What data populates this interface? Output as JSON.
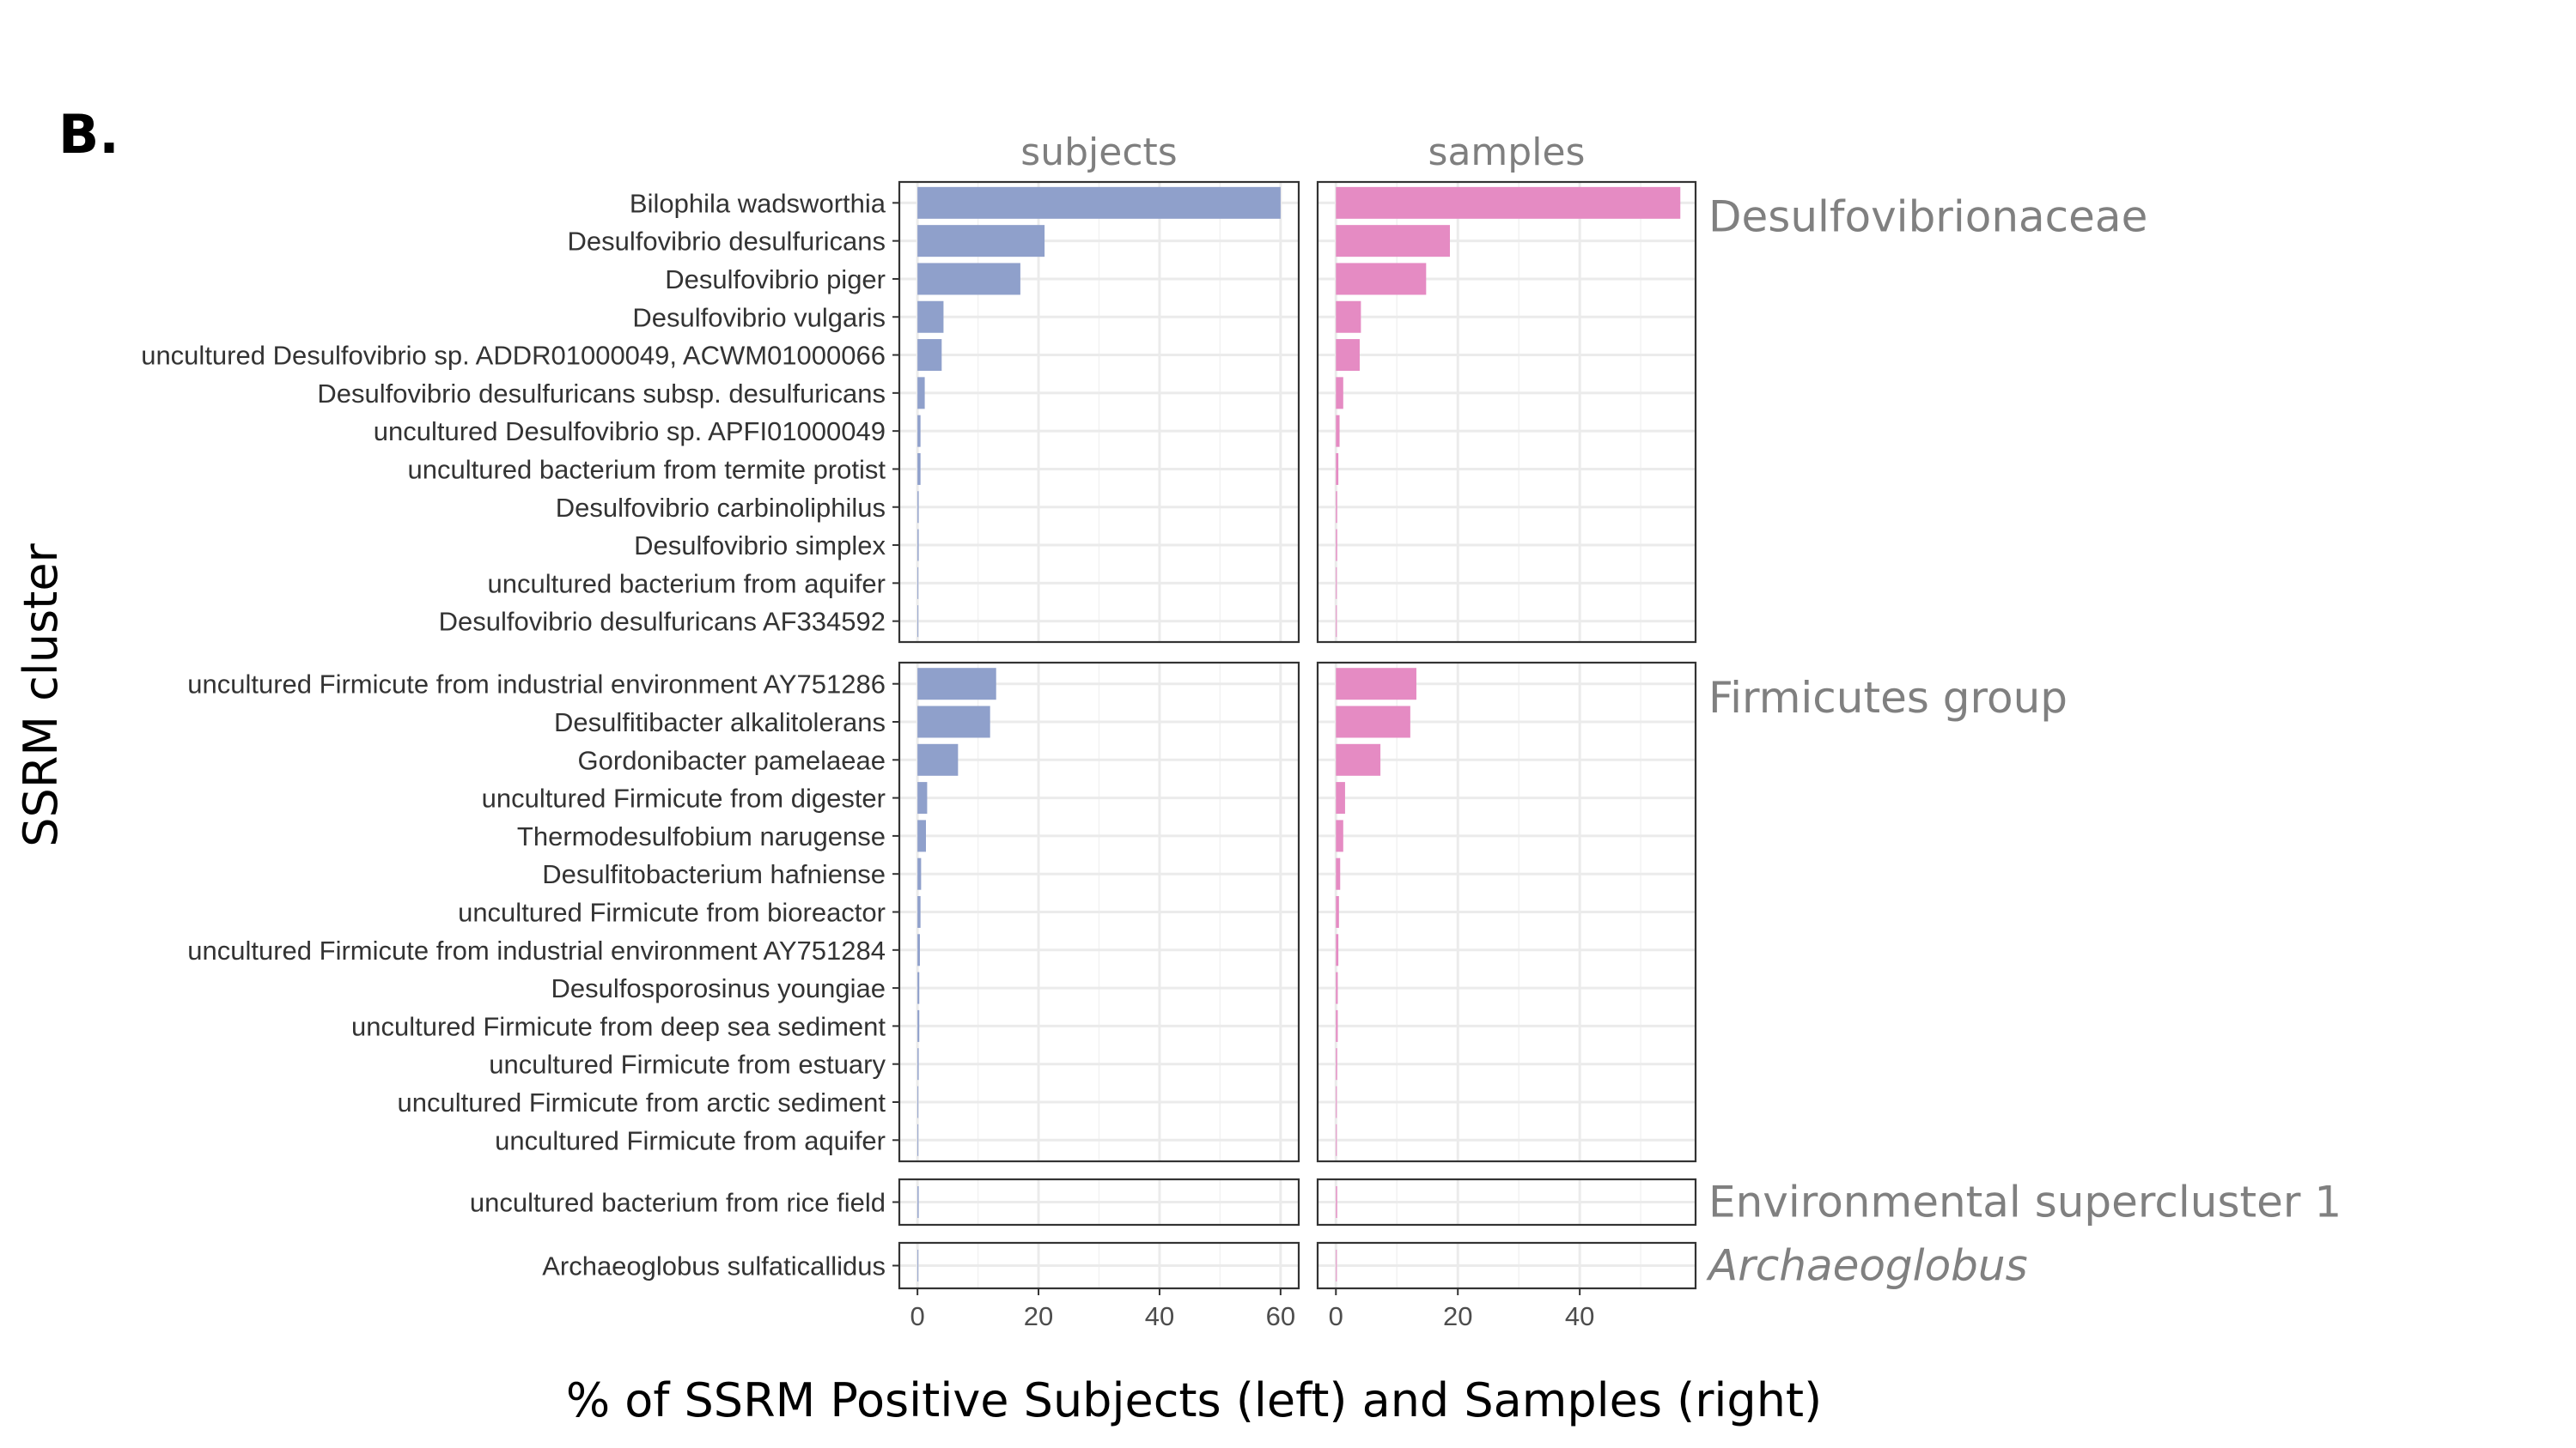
{
  "panel_tag": "B.",
  "strip_labels": [
    "subjects",
    "samples"
  ],
  "xlabel": "% of SSRM Positive Subjects (left) and Samples (right)",
  "ylabel": "SSRM cluster",
  "colors": {
    "subjects_bar": "#8FA0CB",
    "samples_bar": "#E58BC3",
    "facet_text": "#808080",
    "strip_text": "#7F7F7F"
  },
  "chart_data": {
    "type": "bar",
    "orientation": "horizontal",
    "panels": [
      {
        "name": "subjects",
        "xlim": [
          -3,
          63
        ],
        "ticks": [
          0,
          20,
          40,
          60
        ]
      },
      {
        "name": "samples",
        "xlim": [
          -3,
          59
        ],
        "ticks": [
          0,
          20,
          40
        ]
      }
    ],
    "groups": [
      {
        "name": "Desulfovibrionaceae",
        "italic": false,
        "categories": [
          "Bilophila wadsworthia",
          "Desulfovibrio desulfuricans",
          "Desulfovibrio piger",
          "Desulfovibrio vulgaris",
          "uncultured Desulfovibrio sp. ADDR01000049, ACWM01000066",
          "Desulfovibrio desulfuricans subsp. desulfuricans",
          "uncultured Desulfovibrio sp. APFI01000049",
          "uncultured bacterium from termite protist",
          "Desulfovibrio carbinoliphilus",
          "Desulfovibrio simplex",
          "uncultured bacterium from aquifer",
          "Desulfovibrio desulfuricans AF334592"
        ],
        "subjects": [
          60,
          21,
          17,
          4.3,
          4,
          1.2,
          0.5,
          0.5,
          0.2,
          0.2,
          0.1,
          0.1
        ],
        "samples": [
          56.5,
          18.7,
          14.8,
          4.1,
          3.9,
          1.2,
          0.6,
          0.4,
          0.2,
          0.2,
          0.1,
          0.1
        ]
      },
      {
        "name": "Firmicutes group",
        "italic": false,
        "categories": [
          "uncultured Firmicute from industrial environment AY751286",
          "Desulfitibacter alkalitolerans",
          "Gordonibacter pamelaeae",
          "uncultured Firmicute from digester",
          "Thermodesulfobium narugense",
          "Desulfitobacterium hafniense",
          "uncultured Firmicute from bioreactor",
          "uncultured Firmicute from industrial environment AY751284",
          "Desulfosporosinus youngiae",
          "uncultured Firmicute from deep sea sediment",
          "uncultured Firmicute from estuary",
          "uncultured Firmicute from arctic sediment",
          "uncultured Firmicute from aquifer"
        ],
        "subjects": [
          13,
          12,
          6.7,
          1.6,
          1.4,
          0.6,
          0.5,
          0.4,
          0.3,
          0.3,
          0.2,
          0.1,
          0.1
        ],
        "samples": [
          13.2,
          12.2,
          7.3,
          1.5,
          1.2,
          0.7,
          0.5,
          0.4,
          0.3,
          0.3,
          0.2,
          0.1,
          0.1
        ]
      },
      {
        "name": "Environmental supercluster 1",
        "italic": false,
        "categories": [
          "uncultured bacterium from rice field"
        ],
        "subjects": [
          0.2
        ],
        "samples": [
          0.2
        ]
      },
      {
        "name": "Archaeoglobus",
        "italic": true,
        "categories": [
          "Archaeoglobus sulfaticallidus"
        ],
        "subjects": [
          0.1
        ],
        "samples": [
          0.1
        ]
      }
    ]
  }
}
